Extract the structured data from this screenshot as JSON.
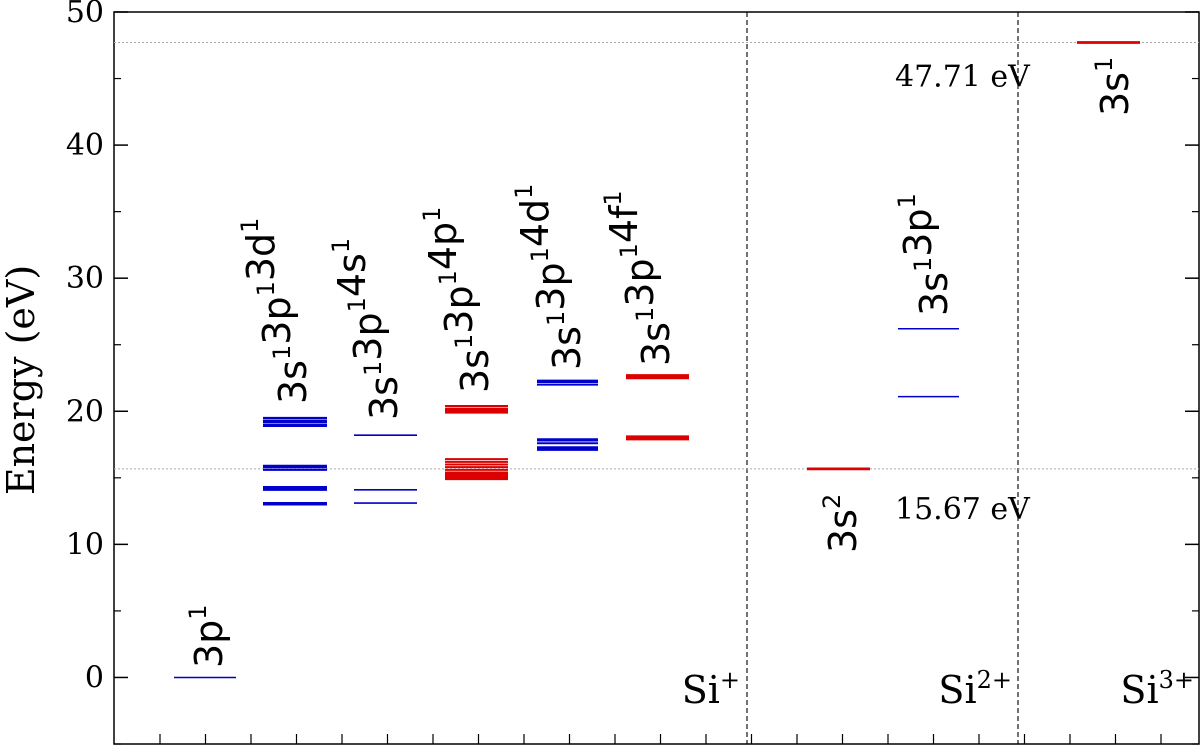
{
  "chart_data": {
    "type": "scatter",
    "title": "",
    "xlabel": "",
    "ylabel": "Energy (eV)",
    "ylim": [
      -5,
      50
    ],
    "yticks": [
      "0",
      "10",
      "20",
      "30",
      "40",
      "50"
    ],
    "grid": false,
    "ionization_thresholds": [
      {
        "energy": 15.67,
        "label": "15.67 eV"
      },
      {
        "energy": 47.71,
        "label": "47.71 eV"
      }
    ],
    "ion_stages": [
      {
        "label": "Si",
        "sup": "+"
      },
      {
        "label": "Si",
        "sup": "2+"
      },
      {
        "label": "Si",
        "sup": "3+"
      }
    ],
    "configurations": [
      {
        "ion": "Si+",
        "label": [
          [
            "3p",
            "1"
          ]
        ],
        "color": "#0000cc",
        "levels": [
          0.0
        ]
      },
      {
        "ion": "Si+",
        "label": [
          [
            "3s",
            "1"
          ],
          [
            "3p",
            "1"
          ],
          [
            "3d",
            "1"
          ]
        ],
        "color": "#0000cc",
        "levels": [
          13.0,
          13.1,
          14.1,
          14.2,
          14.3,
          15.6,
          15.8,
          15.9,
          18.9,
          19.0,
          19.2,
          19.3,
          19.5
        ]
      },
      {
        "ion": "Si+",
        "label": [
          [
            "3s",
            "1"
          ],
          [
            "3p",
            "1"
          ],
          [
            "4s",
            "1"
          ]
        ],
        "color": "#0000cc",
        "levels": [
          13.1,
          14.1,
          18.2
        ]
      },
      {
        "ion": "Si+",
        "label": [
          [
            "3s",
            "1"
          ],
          [
            "3p",
            "1"
          ],
          [
            "4p",
            "1"
          ]
        ],
        "color": "#dd0000",
        "levels": [
          14.9,
          15.0,
          15.1,
          15.2,
          15.3,
          15.4,
          15.6,
          15.8,
          16.0,
          16.2,
          16.4,
          19.9,
          20.0,
          20.1,
          20.2,
          20.4
        ]
      },
      {
        "ion": "Si+",
        "label": [
          [
            "3s",
            "1"
          ],
          [
            "3p",
            "1"
          ],
          [
            "4d",
            "1"
          ]
        ],
        "color": "#0000cc",
        "levels": [
          17.1,
          17.2,
          17.3,
          17.6,
          17.8,
          17.9,
          22.0,
          22.2,
          22.3
        ]
      },
      {
        "ion": "Si+",
        "label": [
          [
            "3s",
            "1"
          ],
          [
            "3p",
            "1"
          ],
          [
            "4f",
            "1"
          ]
        ],
        "color": "#dd0000",
        "levels": [
          17.9,
          18.0,
          18.1,
          22.5,
          22.6,
          22.7
        ]
      },
      {
        "ion": "Si2+",
        "label": [
          [
            "3s",
            "2"
          ]
        ],
        "color": "#dd0000",
        "levels": [
          15.67
        ]
      },
      {
        "ion": "Si2+",
        "label": [
          [
            "3s",
            "1"
          ],
          [
            "3p",
            "1"
          ]
        ],
        "color": "#0000cc",
        "levels": [
          21.1,
          26.2
        ]
      },
      {
        "ion": "Si3+",
        "label": [
          [
            "3s",
            "1"
          ]
        ],
        "color": "#dd0000",
        "levels": [
          47.71
        ]
      }
    ]
  }
}
